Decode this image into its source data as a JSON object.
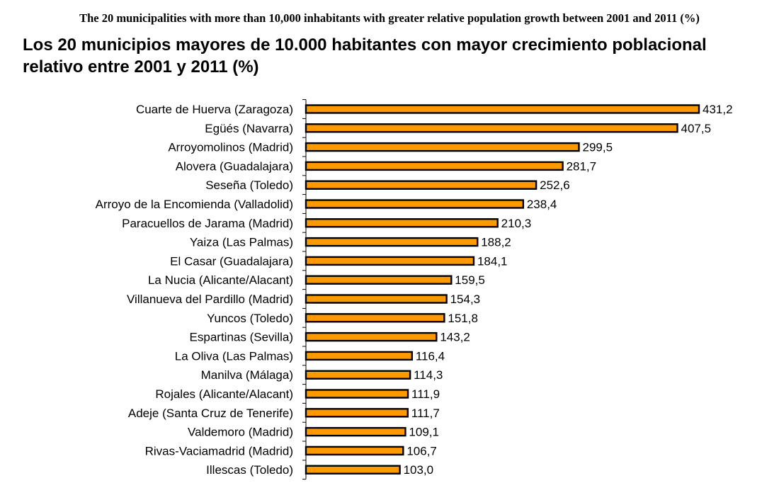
{
  "header": {
    "title_en": "The 20 municipalities with more than 10,000 inhabitants with greater relative population growth between 2001 and 2011 (%)",
    "title_es": "Los 20 municipios mayores de 10.000 habitantes con mayor crecimiento poblacional relativo entre 2001 y 2011 (%)"
  },
  "chart_data": {
    "type": "bar",
    "orientation": "horizontal",
    "title": "Los 20 municipios mayores de 10.000 habitantes con mayor crecimiento poblacional relativo entre 2001 y 2011 (%)",
    "xlabel": "",
    "ylabel": "",
    "xlim": [
      0,
      431.2
    ],
    "grid": false,
    "legend": "none",
    "bar_color": "#FF9900",
    "bar_edge_color": "#000000",
    "categories": [
      "Cuarte de Huerva (Zaragoza)",
      "Egüés (Navarra)",
      "Arroyomolinos (Madrid)",
      "Alovera (Guadalajara)",
      "Seseña (Toledo)",
      "Arroyo de la Encomienda (Valladolid)",
      "Paracuellos de Jarama (Madrid)",
      "Yaiza (Las Palmas)",
      "El Casar (Guadalajara)",
      "La Nucia (Alicante/Alacant)",
      "Villanueva del Pardillo (Madrid)",
      "Yuncos (Toledo)",
      "Espartinas (Sevilla)",
      "La Oliva (Las Palmas)",
      "Manilva (Málaga)",
      "Rojales (Alicante/Alacant)",
      "Adeje (Santa Cruz de Tenerife)",
      "Valdemoro (Madrid)",
      "Rivas-Vaciamadrid (Madrid)",
      "Illescas (Toledo)"
    ],
    "values": [
      431.2,
      407.5,
      299.5,
      281.7,
      252.6,
      238.4,
      210.3,
      188.2,
      184.1,
      159.5,
      154.3,
      151.8,
      143.2,
      116.4,
      114.3,
      111.9,
      111.7,
      109.1,
      106.7,
      103.0
    ],
    "value_labels": [
      "431,2",
      "407,5",
      "299,5",
      "281,7",
      "252,6",
      "238,4",
      "210,3",
      "188,2",
      "184,1",
      "159,5",
      "154,3",
      "151,8",
      "143,2",
      "116,4",
      "114,3",
      "111,9",
      "111,7",
      "109,1",
      "106,7",
      "103,0"
    ]
  }
}
